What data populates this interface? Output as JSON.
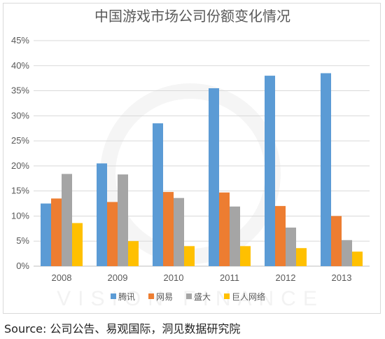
{
  "chart_data": {
    "type": "bar",
    "title": "中国游戏市场公司份额变化情况",
    "categories": [
      "2008",
      "2009",
      "2010",
      "2011",
      "2012",
      "2013"
    ],
    "series": [
      {
        "name": "腾讯",
        "color": "#5b9bd5",
        "values": [
          12.5,
          20.5,
          28.5,
          35.5,
          38.0,
          38.5
        ]
      },
      {
        "name": "网易",
        "color": "#ed7d31",
        "values": [
          13.5,
          12.8,
          14.8,
          14.7,
          12.0,
          10.0
        ]
      },
      {
        "name": "盛大",
        "color": "#a5a5a5",
        "values": [
          18.4,
          18.3,
          13.6,
          11.9,
          7.7,
          5.2
        ]
      },
      {
        "name": "巨人网络",
        "color": "#ffc000",
        "values": [
          8.6,
          5.0,
          4.0,
          4.0,
          3.6,
          2.9
        ]
      }
    ],
    "yticks": [
      "0%",
      "5%",
      "10%",
      "15%",
      "20%",
      "25%",
      "30%",
      "35%",
      "40%",
      "45%"
    ],
    "ylim": [
      0,
      45
    ],
    "grid": true,
    "legend_position": "bottom",
    "watermark": "VISION FINANCE"
  },
  "source_text": "Source:  公司公告、易观国际，洞见数据研究院"
}
